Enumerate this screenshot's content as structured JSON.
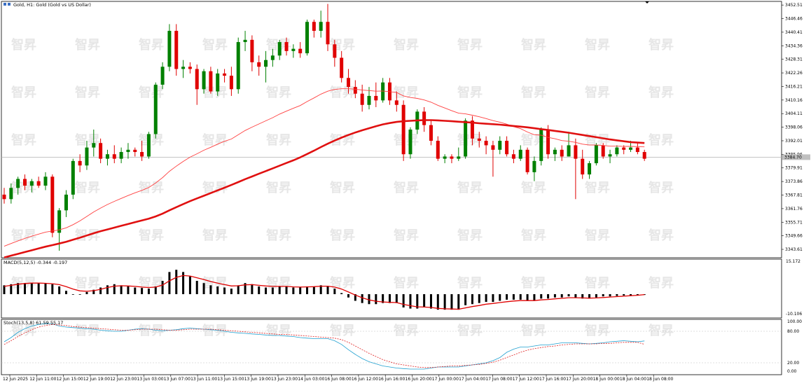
{
  "window": {
    "title": "Gold, H1: Gold (Gold vs US Dollar)"
  },
  "indicators": {
    "macd_label": "MACD(5,12,5) -0.344 -0.197",
    "stoch_label": "Stoch(13,5,8) 61.59 55.17"
  },
  "price_axis": {
    "ticks": [
      "3452.51",
      "3446.46",
      "3440.41",
      "3434.36",
      "3428.31",
      "3422.26",
      "3416.21",
      "3410.16",
      "3404.11",
      "3398.06",
      "3392.01",
      "3385.96",
      "3379.91",
      "3373.86",
      "3367.81",
      "3361.76",
      "3355.71",
      "3349.66",
      "3343.61"
    ],
    "current_price": "3384.70",
    "macd_ticks": [
      "15.172",
      "-10.106"
    ],
    "stoch_ticks": [
      "100.00",
      "80.00",
      "20.00",
      "0.00"
    ]
  },
  "time_axis": {
    "labels": [
      "12 Jun 2025",
      "12 Jun 11:00",
      "12 Jun 15:00",
      "12 Jun 19:00",
      "12 Jun 23:00",
      "13 Jun 03:00",
      "13 Jun 07:00",
      "13 Jun 11:00",
      "13 Jun 15:00",
      "13 Jun 19:00",
      "13 Jun 23:00",
      "14 Jun 03:00",
      "16 Jun 08:00",
      "16 Jun 12:00",
      "16 Jun 16:00",
      "16 Jun 20:00",
      "17 Jun 00:00",
      "17 Jun 04:00",
      "17 Jun 08:00",
      "17 Jun 12:00",
      "17 Jun 16:00",
      "17 Jun 20:00",
      "18 Jun 00:00",
      "18 Jun 04:00",
      "18 Jun 08:00"
    ]
  },
  "watermark": {
    "text": "智昇"
  },
  "colors": {
    "bull": "#008000",
    "bear": "#e00000",
    "ma_slow": "#e01010",
    "ma_fast": "#ff4040",
    "stoch_main": "#20a0d0",
    "stoch_signal": "#e02020"
  },
  "chart_data": [
    {
      "type": "candlestick",
      "symbol": "Gold",
      "timeframe": "H1",
      "title": "Gold, H1: Gold (Gold vs US Dollar)",
      "ylim": [
        3340.5,
        3453.5
      ],
      "candles": [
        {
          "o": 3368,
          "h": 3371,
          "l": 3364,
          "c": 3366
        },
        {
          "o": 3366,
          "h": 3373,
          "l": 3364,
          "c": 3371
        },
        {
          "o": 3371,
          "h": 3376,
          "l": 3368,
          "c": 3375
        },
        {
          "o": 3375,
          "h": 3377,
          "l": 3370,
          "c": 3372
        },
        {
          "o": 3372,
          "h": 3375,
          "l": 3369,
          "c": 3374
        },
        {
          "o": 3374,
          "h": 3376,
          "l": 3371,
          "c": 3372
        },
        {
          "o": 3372,
          "h": 3378,
          "l": 3370,
          "c": 3376
        },
        {
          "o": 3376,
          "h": 3377,
          "l": 3349,
          "c": 3351
        },
        {
          "o": 3351,
          "h": 3362,
          "l": 3343,
          "c": 3361
        },
        {
          "o": 3361,
          "h": 3370,
          "l": 3358,
          "c": 3368
        },
        {
          "o": 3368,
          "h": 3384,
          "l": 3366,
          "c": 3383
        },
        {
          "o": 3383,
          "h": 3386,
          "l": 3378,
          "c": 3381
        },
        {
          "o": 3381,
          "h": 3392,
          "l": 3379,
          "c": 3389
        },
        {
          "o": 3389,
          "h": 3397,
          "l": 3385,
          "c": 3391
        },
        {
          "o": 3391,
          "h": 3393,
          "l": 3382,
          "c": 3384
        },
        {
          "o": 3384,
          "h": 3388,
          "l": 3381,
          "c": 3386
        },
        {
          "o": 3386,
          "h": 3390,
          "l": 3382,
          "c": 3384
        },
        {
          "o": 3384,
          "h": 3389,
          "l": 3382,
          "c": 3387
        },
        {
          "o": 3387,
          "h": 3391,
          "l": 3384,
          "c": 3388
        },
        {
          "o": 3388,
          "h": 3389,
          "l": 3385,
          "c": 3387
        },
        {
          "o": 3387,
          "h": 3392,
          "l": 3383,
          "c": 3385
        },
        {
          "o": 3385,
          "h": 3396,
          "l": 3384,
          "c": 3395
        },
        {
          "o": 3395,
          "h": 3418,
          "l": 3393,
          "c": 3417
        },
        {
          "o": 3417,
          "h": 3427,
          "l": 3415,
          "c": 3425
        },
        {
          "o": 3425,
          "h": 3444,
          "l": 3423,
          "c": 3441
        },
        {
          "o": 3441,
          "h": 3444,
          "l": 3421,
          "c": 3424
        },
        {
          "o": 3424,
          "h": 3428,
          "l": 3420,
          "c": 3425
        },
        {
          "o": 3425,
          "h": 3427,
          "l": 3422,
          "c": 3424
        },
        {
          "o": 3424,
          "h": 3426,
          "l": 3408,
          "c": 3415
        },
        {
          "o": 3415,
          "h": 3424,
          "l": 3413,
          "c": 3423
        },
        {
          "o": 3423,
          "h": 3425,
          "l": 3413,
          "c": 3414
        },
        {
          "o": 3414,
          "h": 3424,
          "l": 3412,
          "c": 3422
        },
        {
          "o": 3422,
          "h": 3424,
          "l": 3418,
          "c": 3421
        },
        {
          "o": 3421,
          "h": 3425,
          "l": 3412,
          "c": 3415
        },
        {
          "o": 3415,
          "h": 3438,
          "l": 3413,
          "c": 3436
        },
        {
          "o": 3436,
          "h": 3441,
          "l": 3432,
          "c": 3437
        },
        {
          "o": 3437,
          "h": 3439,
          "l": 3423,
          "c": 3427
        },
        {
          "o": 3427,
          "h": 3430,
          "l": 3421,
          "c": 3425
        },
        {
          "o": 3425,
          "h": 3432,
          "l": 3418,
          "c": 3428
        },
        {
          "o": 3428,
          "h": 3433,
          "l": 3425,
          "c": 3430
        },
        {
          "o": 3430,
          "h": 3437,
          "l": 3428,
          "c": 3436
        },
        {
          "o": 3436,
          "h": 3438,
          "l": 3430,
          "c": 3432
        },
        {
          "o": 3432,
          "h": 3435,
          "l": 3429,
          "c": 3433
        },
        {
          "o": 3433,
          "h": 3436,
          "l": 3429,
          "c": 3431
        },
        {
          "o": 3431,
          "h": 3446,
          "l": 3430,
          "c": 3445
        },
        {
          "o": 3445,
          "h": 3446,
          "l": 3438,
          "c": 3441
        },
        {
          "o": 3441,
          "h": 3450,
          "l": 3438,
          "c": 3445
        },
        {
          "o": 3445,
          "h": 3453,
          "l": 3432,
          "c": 3435
        },
        {
          "o": 3435,
          "h": 3437,
          "l": 3425,
          "c": 3429
        },
        {
          "o": 3429,
          "h": 3432,
          "l": 3418,
          "c": 3420
        },
        {
          "o": 3420,
          "h": 3424,
          "l": 3413,
          "c": 3416
        },
        {
          "o": 3416,
          "h": 3419,
          "l": 3411,
          "c": 3413
        },
        {
          "o": 3413,
          "h": 3417,
          "l": 3405,
          "c": 3408
        },
        {
          "o": 3408,
          "h": 3416,
          "l": 3406,
          "c": 3412
        },
        {
          "o": 3412,
          "h": 3418,
          "l": 3407,
          "c": 3410
        },
        {
          "o": 3410,
          "h": 3420,
          "l": 3409,
          "c": 3418
        },
        {
          "o": 3418,
          "h": 3420,
          "l": 3408,
          "c": 3410
        },
        {
          "o": 3410,
          "h": 3414,
          "l": 3405,
          "c": 3408
        },
        {
          "o": 3408,
          "h": 3410,
          "l": 3383,
          "c": 3386
        },
        {
          "o": 3386,
          "h": 3398,
          "l": 3384,
          "c": 3397
        },
        {
          "o": 3397,
          "h": 3406,
          "l": 3395,
          "c": 3405
        },
        {
          "o": 3405,
          "h": 3407,
          "l": 3396,
          "c": 3399
        },
        {
          "o": 3399,
          "h": 3401,
          "l": 3390,
          "c": 3392
        },
        {
          "o": 3392,
          "h": 3394,
          "l": 3383,
          "c": 3384
        },
        {
          "o": 3384,
          "h": 3386,
          "l": 3382,
          "c": 3385
        },
        {
          "o": 3385,
          "h": 3386,
          "l": 3382,
          "c": 3384
        },
        {
          "o": 3384,
          "h": 3389,
          "l": 3383,
          "c": 3385
        },
        {
          "o": 3385,
          "h": 3402,
          "l": 3384,
          "c": 3401
        },
        {
          "o": 3401,
          "h": 3403,
          "l": 3390,
          "c": 3393
        },
        {
          "o": 3393,
          "h": 3396,
          "l": 3389,
          "c": 3392
        },
        {
          "o": 3392,
          "h": 3394,
          "l": 3386,
          "c": 3390
        },
        {
          "o": 3390,
          "h": 3392,
          "l": 3376,
          "c": 3388
        },
        {
          "o": 3388,
          "h": 3394,
          "l": 3386,
          "c": 3392
        },
        {
          "o": 3392,
          "h": 3394,
          "l": 3385,
          "c": 3386
        },
        {
          "o": 3386,
          "h": 3388,
          "l": 3382,
          "c": 3384
        },
        {
          "o": 3384,
          "h": 3390,
          "l": 3383,
          "c": 3388
        },
        {
          "o": 3388,
          "h": 3389,
          "l": 3377,
          "c": 3378
        },
        {
          "o": 3378,
          "h": 3385,
          "l": 3374,
          "c": 3383
        },
        {
          "o": 3383,
          "h": 3398,
          "l": 3381,
          "c": 3397
        },
        {
          "o": 3397,
          "h": 3399,
          "l": 3384,
          "c": 3386
        },
        {
          "o": 3386,
          "h": 3389,
          "l": 3383,
          "c": 3388
        },
        {
          "o": 3388,
          "h": 3390,
          "l": 3383,
          "c": 3385
        },
        {
          "o": 3385,
          "h": 3396,
          "l": 3385,
          "c": 3390
        },
        {
          "o": 3390,
          "h": 3393,
          "l": 3366,
          "c": 3384
        },
        {
          "o": 3384,
          "h": 3388,
          "l": 3375,
          "c": 3377
        },
        {
          "o": 3377,
          "h": 3383,
          "l": 3375,
          "c": 3382
        },
        {
          "o": 3382,
          "h": 3391,
          "l": 3381,
          "c": 3390
        },
        {
          "o": 3390,
          "h": 3391,
          "l": 3384,
          "c": 3385
        },
        {
          "o": 3385,
          "h": 3388,
          "l": 3382,
          "c": 3386
        },
        {
          "o": 3386,
          "h": 3390,
          "l": 3385,
          "c": 3389
        },
        {
          "o": 3389,
          "h": 3390,
          "l": 3386,
          "c": 3388
        },
        {
          "o": 3388,
          "h": 3392,
          "l": 3387,
          "c": 3389
        },
        {
          "o": 3389,
          "h": 3391,
          "l": 3386,
          "c": 3387
        },
        {
          "o": 3387,
          "h": 3388,
          "l": 3383,
          "c": 3384
        }
      ],
      "ma_slow": [
        3340,
        3340.8,
        3341.6,
        3342.4,
        3343.2,
        3344,
        3344.8,
        3345.5,
        3346.2,
        3347,
        3347.9,
        3348.8,
        3349.8,
        3350.8,
        3351.7,
        3352.5,
        3353.3,
        3354.1,
        3354.9,
        3355.7,
        3356.5,
        3357.3,
        3358.3,
        3359.5,
        3361,
        3362.4,
        3363.8,
        3365.1,
        3366.3,
        3367.5,
        3368.7,
        3369.9,
        3371.1,
        3372.3,
        3373.6,
        3374.9,
        3376.1,
        3377.3,
        3378.5,
        3379.7,
        3380.9,
        3382.1,
        3383.3,
        3384.6,
        3386.1,
        3387.6,
        3389.2,
        3390.7,
        3392.1,
        3393.4,
        3394.6,
        3395.7,
        3396.7,
        3397.6,
        3398.5,
        3399.3,
        3399.9,
        3400.4,
        3400.7,
        3400.9,
        3401.1,
        3401.2,
        3401.2,
        3401.1,
        3400.9,
        3400.7,
        3400.5,
        3400.3,
        3400.1,
        3399.8,
        3399.6,
        3399.4,
        3399.2,
        3398.9,
        3398.6,
        3398.3,
        3398,
        3397.6,
        3397.2,
        3396.8,
        3396.4,
        3396,
        3395.6,
        3395.1,
        3394.6,
        3394.1,
        3393.6,
        3393.1,
        3392.6,
        3392.2,
        3391.8,
        3391.4,
        3391.2,
        3391
      ],
      "ma_fast": [
        3345,
        3346.2,
        3347.4,
        3348.5,
        3349.5,
        3350.4,
        3351.3,
        3351.8,
        3352.3,
        3353.2,
        3354.6,
        3356.3,
        3358.3,
        3360.3,
        3362,
        3363.6,
        3365,
        3366.3,
        3367.6,
        3368.8,
        3369.9,
        3371.2,
        3373.2,
        3375.6,
        3378.4,
        3380.7,
        3382.8,
        3384.7,
        3386.2,
        3387.8,
        3389.1,
        3390.5,
        3391.8,
        3392.8,
        3394.7,
        3396.6,
        3398.1,
        3399.5,
        3400.9,
        3402.3,
        3403.9,
        3405.2,
        3406.5,
        3407.7,
        3409.5,
        3411.1,
        3412.8,
        3414.1,
        3414.9,
        3415.2,
        3415.2,
        3415,
        3414.6,
        3414.4,
        3414.1,
        3414.2,
        3413.9,
        3413.5,
        3412,
        3411.3,
        3410.9,
        3410.2,
        3409.2,
        3407.8,
        3406.6,
        3405.4,
        3404.3,
        3404,
        3403.4,
        3402.7,
        3401.9,
        3401,
        3400.3,
        3399.4,
        3398.3,
        3397.4,
        3395.9,
        3394.7,
        3394.5,
        3393.5,
        3392.9,
        3392.1,
        3391.8,
        3391.3,
        3390.5,
        3390.1,
        3390.1,
        3389.9,
        3389.6,
        3389.6,
        3389.5,
        3389.5,
        3389.4,
        3389.3
      ]
    },
    {
      "type": "bar",
      "name": "MACD(5,12,5)",
      "label": "MACD(5,12,5) -0.344 -0.197",
      "ylim": [
        -10.106,
        15.172
      ],
      "values": [
        4,
        4.5,
        5,
        5,
        5.2,
        5,
        4.8,
        4.5,
        3.5,
        1.5,
        0,
        0,
        1,
        2,
        3,
        4,
        4.5,
        4,
        3.5,
        3,
        2.8,
        2.5,
        3.5,
        6,
        10,
        11,
        10,
        8,
        6,
        5,
        4,
        3.5,
        3,
        2.5,
        4,
        5,
        4.5,
        3.5,
        3,
        3,
        3.5,
        3.5,
        3,
        3,
        3.5,
        3.5,
        4,
        3.5,
        2.5,
        0.5,
        -1.5,
        -3,
        -4,
        -4.5,
        -4.5,
        -4,
        -4,
        -4,
        -6,
        -6.5,
        -6.5,
        -6,
        -6.5,
        -7,
        -7,
        -7,
        -7,
        -5,
        -4.5,
        -4,
        -3.5,
        -3.5,
        -3,
        -2.5,
        -2.5,
        -2.5,
        -3,
        -3,
        -2,
        -2,
        -1.5,
        -1.5,
        -1,
        -1.5,
        -2,
        -2,
        -1.5,
        -1,
        -1,
        -0.8,
        -0.6,
        -0.5,
        -0.4,
        -0.344
      ],
      "signal": [
        3.5,
        4,
        4.5,
        4.8,
        5,
        5,
        4.9,
        4.7,
        4.3,
        3.4,
        2.3,
        1.5,
        1.3,
        1.6,
        2.2,
        3,
        3.6,
        3.8,
        3.7,
        3.5,
        3.2,
        3,
        3.2,
        4.1,
        6,
        7.6,
        8.4,
        8.2,
        7.4,
        6.6,
        5.7,
        5,
        4.3,
        3.7,
        3.8,
        4.2,
        4.3,
        4,
        3.7,
        3.5,
        3.5,
        3.5,
        3.3,
        3.2,
        3.3,
        3.4,
        3.6,
        3.6,
        3.2,
        2.3,
        1,
        -0.4,
        -1.6,
        -2.6,
        -3.2,
        -3.5,
        -3.7,
        -3.8,
        -4.6,
        -5.2,
        -5.7,
        -5.8,
        -6,
        -6.4,
        -6.6,
        -6.7,
        -6.8,
        -6.2,
        -5.6,
        -5.1,
        -4.5,
        -4.2,
        -3.8,
        -3.4,
        -3.1,
        -2.9,
        -2.9,
        -2.9,
        -2.6,
        -2.4,
        -2.1,
        -1.9,
        -1.6,
        -1.6,
        -1.7,
        -1.8,
        -1.7,
        -1.5,
        -1.3,
        -1.1,
        -0.9,
        -0.7,
        -0.5,
        -0.197
      ]
    },
    {
      "type": "line",
      "name": "Stoch(13,5,8)",
      "label": "Stoch(13,5,8) 61.59 55.17",
      "ylim": [
        0,
        100
      ],
      "levels": [
        20,
        80
      ],
      "main": [
        60,
        68,
        78,
        85,
        90,
        93,
        95,
        94,
        90,
        88,
        87,
        86,
        85,
        84,
        82,
        81,
        80,
        80,
        82,
        84,
        85,
        84,
        82,
        81,
        82,
        83,
        85,
        86,
        85,
        84,
        83,
        82,
        80,
        78,
        77,
        76,
        75,
        74,
        73,
        72,
        72,
        71,
        70,
        68,
        67,
        66,
        66,
        66,
        62,
        55,
        45,
        36,
        28,
        22,
        18,
        14,
        12,
        10,
        9,
        8,
        8,
        8,
        10,
        12,
        12,
        12,
        12,
        14,
        16,
        18,
        20,
        24,
        30,
        40,
        46,
        50,
        50,
        52,
        54,
        54,
        56,
        58,
        58,
        58,
        57,
        56,
        57,
        58,
        60,
        61,
        62,
        61,
        60,
        61.59
      ],
      "signal": [
        55,
        62,
        70,
        77,
        83,
        88,
        91,
        93,
        92,
        91,
        89,
        88,
        87,
        86,
        85,
        84,
        83,
        82,
        82,
        83,
        84,
        84,
        84,
        83,
        82,
        82,
        83,
        84,
        84,
        84,
        84,
        83,
        82,
        81,
        80,
        79,
        78,
        77,
        76,
        75,
        74,
        74,
        73,
        72,
        71,
        70,
        69,
        68,
        67,
        64,
        59,
        52,
        45,
        38,
        32,
        26,
        22,
        18,
        16,
        14,
        12,
        11,
        11,
        12,
        13,
        14,
        14,
        15,
        16,
        17,
        19,
        21,
        25,
        30,
        35,
        40,
        44,
        47,
        49,
        51,
        52,
        54,
        55,
        56,
        56,
        56,
        56,
        57,
        57,
        58,
        59,
        59,
        59,
        55.17
      ]
    }
  ]
}
